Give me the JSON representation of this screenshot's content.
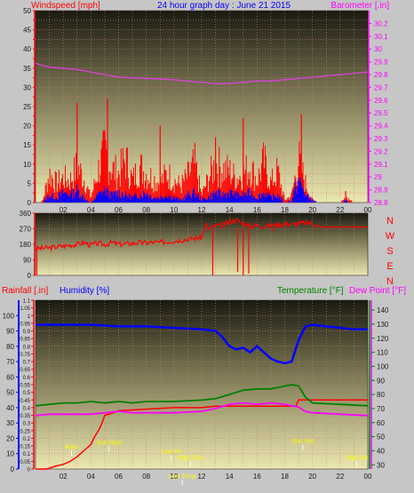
{
  "title": "24 hour graph day : June 21 2015",
  "colors": {
    "page_bg": "#c6c6c6",
    "wind": "#ff0000",
    "gust_avg": "#0000ff",
    "baro": "#e040e0",
    "label_red": "#ff0000",
    "label_blue": "#0000ff",
    "label_green": "#008000",
    "label_magenta": "#ff00ff",
    "text_dark": "#1a1a1a",
    "plot_top": "#1a1a10",
    "plot_bottom": "#ece8b0",
    "grid": "#c98080",
    "annotation": "#ffff00"
  },
  "x_ticks": [
    "02",
    "04",
    "06",
    "08",
    "10",
    "12",
    "14",
    "16",
    "18",
    "20",
    "22",
    "00"
  ],
  "chart_data": [
    {
      "type": "line",
      "name": "wind-barometer",
      "left_axis_label": "Windspeed [mph]",
      "right_axis_label": "Barometer [.in]",
      "left_ylim": [
        0,
        50
      ],
      "left_ticks": [
        0,
        2.5,
        5,
        7.5,
        10,
        12.5,
        15,
        17.5,
        20,
        22.5,
        25,
        27.5,
        30,
        32.5,
        35,
        37.5,
        40,
        42.5,
        45,
        47.5,
        50
      ],
      "left_tick_labels": [
        "0",
        "",
        "5",
        "",
        "10",
        "",
        "15",
        "",
        "20",
        "",
        "25",
        "",
        "30",
        "",
        "35",
        "",
        "40",
        "",
        "45",
        "",
        "50"
      ],
      "right_ylim": [
        28.8,
        30.3
      ],
      "right_ticks": [
        28.8,
        28.9,
        29.0,
        29.1,
        29.2,
        29.3,
        29.4,
        29.5,
        29.6,
        29.7,
        29.8,
        29.9,
        30.0,
        30.1,
        30.2
      ],
      "right_tick_labels": [
        "28.8",
        "28.9",
        "29",
        "29.1",
        "29.2",
        "29.3",
        "29.4",
        "29.5",
        "29.6",
        "29.7",
        "29.8",
        "29.9",
        "30",
        "30.1",
        "30.2"
      ],
      "xlim": [
        0,
        24
      ],
      "barometer": {
        "x": [
          0,
          0.5,
          1,
          2,
          3,
          4,
          5,
          6,
          8,
          10,
          12,
          13,
          14,
          15,
          16,
          17,
          18,
          19,
          20,
          21,
          22,
          23,
          24
        ],
        "y": [
          29.89,
          29.87,
          29.86,
          29.85,
          29.84,
          29.82,
          29.8,
          29.78,
          29.77,
          29.76,
          29.74,
          29.73,
          29.73,
          29.74,
          29.75,
          29.75,
          29.76,
          29.77,
          29.78,
          29.79,
          29.8,
          29.81,
          29.82
        ]
      },
      "wind_envelope": {
        "x": [
          0,
          0.5,
          1,
          1.5,
          2,
          2.5,
          3,
          3.5,
          4,
          4.5,
          5,
          5.5,
          6,
          6.5,
          7,
          7.5,
          8,
          8.5,
          9,
          9.5,
          10,
          10.5,
          11,
          11.5,
          12,
          12.5,
          13,
          13.5,
          14,
          14.5,
          15,
          15.5,
          16,
          16.5,
          17,
          17.5,
          18,
          18.5,
          19,
          19.5,
          20,
          20.5,
          21,
          21.5,
          22,
          22.5,
          23,
          23.5,
          24
        ],
        "y": [
          0,
          0.5,
          12,
          8,
          10,
          9,
          15,
          10,
          2,
          13,
          21,
          14,
          12,
          18,
          9,
          15,
          12,
          10,
          8,
          12,
          9,
          7,
          11,
          16,
          3,
          10,
          16,
          14,
          13,
          10,
          12,
          15,
          9,
          17,
          8,
          13,
          1,
          3,
          18,
          8,
          1,
          0,
          0,
          0,
          0,
          2,
          0,
          0,
          0
        ]
      },
      "wind_spikes": {
        "x": [
          3.0,
          5.2,
          9.0,
          13.0,
          15.0,
          18.6,
          19.2,
          22.4
        ],
        "y": [
          26,
          27,
          20,
          17,
          22,
          4,
          23,
          3
        ]
      },
      "gust_envelope": {
        "x": [
          0,
          0.5,
          1,
          1.5,
          2,
          2.5,
          3,
          3.5,
          4,
          4.5,
          5,
          5.5,
          6,
          6.5,
          7,
          7.5,
          8,
          8.5,
          9,
          9.5,
          10,
          10.5,
          11,
          11.5,
          12,
          12.5,
          13,
          13.5,
          14,
          14.5,
          15,
          15.5,
          16,
          16.5,
          17,
          17.5,
          18,
          18.5,
          19,
          19.5,
          20,
          20.5,
          21,
          21.5,
          22,
          22.5,
          23,
          23.5,
          24
        ],
        "y": [
          0,
          0,
          3,
          2,
          4,
          3,
          5,
          2,
          0,
          3,
          5,
          3,
          4,
          3,
          2,
          3,
          4,
          2,
          2,
          3,
          2,
          1,
          3,
          4,
          1,
          2,
          4,
          3,
          4,
          3,
          3,
          4,
          2,
          4,
          2,
          3,
          0,
          1,
          9,
          3,
          1,
          0,
          0,
          0,
          0,
          1,
          0,
          0,
          0
        ]
      }
    },
    {
      "type": "line",
      "name": "wind-direction",
      "left_ticks": [
        0,
        90,
        180,
        270,
        360
      ],
      "left_tick_labels": [
        "0",
        "90",
        "180",
        "270",
        "360"
      ],
      "ylim": [
        0,
        360
      ],
      "right_labels": [
        "N",
        "W",
        "S",
        "E",
        "N"
      ],
      "xlim": [
        0,
        24
      ],
      "direction": {
        "x": [
          0,
          0.5,
          1,
          1.5,
          2,
          2.5,
          3,
          3.5,
          4,
          4.5,
          5,
          5.5,
          6,
          6.5,
          7,
          7.5,
          8,
          8.5,
          9,
          9.5,
          10,
          10.5,
          11,
          11.5,
          12,
          12.3,
          12.5,
          13,
          13.5,
          14,
          14.5,
          15,
          15.5,
          16,
          16.5,
          17,
          17.5,
          18,
          18.5,
          19,
          19.5,
          20,
          20.5,
          21,
          22,
          23,
          24
        ],
        "y": [
          155,
          158,
          160,
          165,
          170,
          175,
          180,
          190,
          175,
          185,
          178,
          190,
          180,
          182,
          185,
          190,
          188,
          192,
          190,
          195,
          200,
          205,
          210,
          215,
          220,
          300,
          270,
          285,
          290,
          310,
          320,
          300,
          285,
          290,
          285,
          288,
          292,
          300,
          295,
          300,
          305,
          300,
          280,
          280,
          280,
          280,
          280
        ]
      },
      "direction_drops": {
        "x": [
          12.8,
          14.6,
          15.0,
          15.4,
          17.2
        ],
        "y": [
          0,
          20,
          0,
          10,
          250
        ]
      }
    },
    {
      "type": "line",
      "name": "rain-humidity-temperature",
      "left_axis_label_rain": "Rainfall [.in]",
      "left_axis_label_humidity": "Humidity [%]",
      "right_axis_label_temp": "Temperature [°F]",
      "right_axis_label_dew": "Dew Point [°F]",
      "rain_ticks": [
        0,
        0.05,
        0.1,
        0.15,
        0.2,
        0.25,
        0.3,
        0.35,
        0.4,
        0.45,
        0.5,
        0.55,
        0.6,
        0.65,
        0.7,
        0.75,
        0.8,
        0.85,
        0.9,
        0.95,
        1.0,
        1.05,
        1.1
      ],
      "rain_tick_labels": [
        "0",
        "0.05",
        "0.1",
        "0.15",
        "0.2",
        "0.25",
        "0.3",
        "0.35",
        "0.4",
        "0.45",
        "0.5",
        "0.55",
        "0.6",
        "0.65",
        "0.7",
        "0.75",
        "0.8",
        "0.85",
        "0.9",
        "0.95",
        "1",
        "1.05",
        "1.1"
      ],
      "rain_ylim": [
        0,
        1.1
      ],
      "humidity_ticks": [
        0,
        10,
        20,
        30,
        40,
        50,
        60,
        70,
        80,
        90,
        100
      ],
      "humidity_tick_labels": [
        "0",
        "10",
        "20",
        "30",
        "40",
        "50",
        "60",
        "70",
        "80",
        "90",
        "100"
      ],
      "humidity_ylim": [
        0,
        110
      ],
      "temp_ticks": [
        30,
        40,
        50,
        60,
        70,
        80,
        90,
        100,
        110,
        120,
        130,
        140
      ],
      "temp_tick_labels": [
        "30",
        "40",
        "50",
        "60",
        "70",
        "80",
        "90",
        "100",
        "110",
        "120",
        "130",
        "140"
      ],
      "temp_ylim": [
        27,
        147
      ],
      "xlim": [
        0,
        24
      ],
      "series": [
        {
          "name": "Rainfall",
          "x": [
            0,
            0.8,
            1.5,
            2,
            2.5,
            3,
            3.5,
            4,
            4.2,
            4.6,
            4.8,
            5.0,
            5.4,
            6,
            8,
            10,
            12,
            13,
            14,
            16,
            18,
            18.8,
            19,
            20,
            22,
            24
          ],
          "y": [
            0,
            0,
            0.02,
            0.03,
            0.05,
            0.08,
            0.12,
            0.16,
            0.2,
            0.26,
            0.3,
            0.35,
            0.36,
            0.38,
            0.39,
            0.4,
            0.4,
            0.41,
            0.41,
            0.41,
            0.41,
            0.41,
            0.45,
            0.45,
            0.45,
            0.45
          ]
        },
        {
          "name": "Humidity",
          "x": [
            0,
            2,
            4,
            6,
            8,
            10,
            12,
            13,
            13.5,
            14,
            14.5,
            15,
            15.5,
            16,
            16.5,
            17,
            17.5,
            18,
            18.5,
            19,
            19.5,
            20,
            21,
            22,
            23,
            24
          ],
          "y": [
            94,
            94,
            94,
            93,
            93,
            92,
            91,
            90,
            86,
            80,
            78,
            79,
            76,
            80,
            76,
            72,
            70,
            69,
            70,
            84,
            93,
            94,
            93,
            92,
            91,
            91
          ]
        },
        {
          "name": "Temperature",
          "x": [
            0,
            1,
            2,
            3,
            4,
            5,
            6,
            7,
            8,
            10,
            12,
            13,
            14,
            15,
            16,
            17,
            18,
            18.5,
            19,
            19.5,
            20,
            22,
            24
          ],
          "y": [
            72,
            73,
            74,
            74,
            75,
            74,
            75,
            74,
            75,
            75,
            76,
            77,
            80,
            83,
            84,
            84,
            86,
            87,
            86,
            78,
            74,
            73,
            72
          ]
        },
        {
          "name": "Dew Point",
          "x": [
            0,
            1,
            2,
            3,
            4,
            5,
            6,
            7,
            8,
            10,
            12,
            13,
            14,
            15,
            16,
            17,
            18,
            19,
            19.5,
            20,
            22,
            24
          ],
          "y": [
            65,
            66,
            66,
            66,
            66,
            67,
            68,
            67,
            67,
            67,
            68,
            70,
            73,
            74,
            73,
            74,
            73,
            71,
            68,
            67,
            66,
            65
          ]
        }
      ],
      "annotations": [
        {
          "text": "Rain",
          "x": 2.6,
          "y_rain": 0.13
        },
        {
          "text": "Sun Rise",
          "x": 5.3,
          "y_rain": 0.16
        },
        {
          "text": "Low Hu",
          "x": 9.8,
          "y_rain": 0.1
        },
        {
          "text": "High Sun",
          "x": 11.2,
          "y_rain": 0.06
        },
        {
          "text": "Sun Set",
          "x": 19.3,
          "y_rain": 0.17
        },
        {
          "text": "High Hu",
          "x": 23.2,
          "y_rain": 0.06
        },
        {
          "text": "Low Temp",
          "x": 10.6,
          "y_rain": -0.06
        }
      ]
    }
  ]
}
